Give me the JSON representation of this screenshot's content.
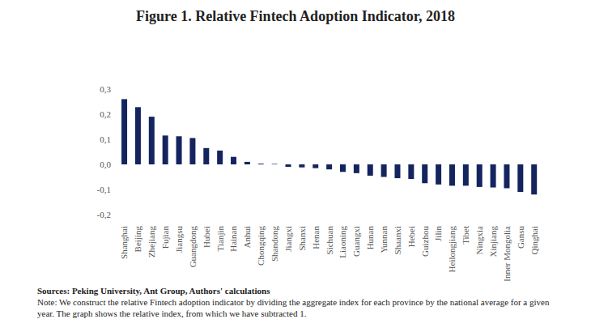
{
  "chart_data": {
    "type": "bar",
    "title": "Figure 1. Relative Fintech Adoption Indicator, 2018",
    "categories": [
      "Shanghai",
      "Beijing",
      "Zhejiang",
      "Fujian",
      "Jiangsu",
      "Guangdong",
      "Hubei",
      "Tianjin",
      "Hainan",
      "Anhui",
      "Chongqing",
      "Shandong",
      "Jiangxi",
      "Shanxi",
      "Henan",
      "Sichuan",
      "Liaoning",
      "Guangxi",
      "Hunan",
      "Yunnan",
      "Shaanxi",
      "Hebei",
      "Guizhou",
      "Jilin",
      "Heilongjiang",
      "Tibet",
      "Ningxia",
      "Xinjiang",
      "Inner Mongolia",
      "Gansu",
      "Qinghai"
    ],
    "values": [
      0.26,
      0.228,
      0.19,
      0.115,
      0.112,
      0.105,
      0.065,
      0.055,
      0.03,
      0.01,
      0.003,
      0.002,
      -0.01,
      -0.012,
      -0.015,
      -0.02,
      -0.03,
      -0.035,
      -0.045,
      -0.05,
      -0.055,
      -0.058,
      -0.075,
      -0.08,
      -0.085,
      -0.085,
      -0.09,
      -0.092,
      -0.095,
      -0.11,
      -0.12
    ],
    "color": "#14245e",
    "ylim": [
      -0.2,
      0.3
    ],
    "yticks": [
      {
        "value": -0.2,
        "label": "-0,2"
      },
      {
        "value": -0.1,
        "label": "-0,1"
      },
      {
        "value": 0,
        "label": "0,0"
      },
      {
        "value": 0.1,
        "label": "0,1"
      },
      {
        "value": 0.2,
        "label": "0,2"
      },
      {
        "value": 0.3,
        "label": "0,3"
      }
    ],
    "grid": false,
    "source": "Sources: Peking University, Ant Group, Authors' calculations",
    "note": "Note: We construct the relative Fintech adoption indicator by dividing the aggregate index for each province by the national average for a given year. The graph shows the relative index, from which we have subtracted 1."
  }
}
